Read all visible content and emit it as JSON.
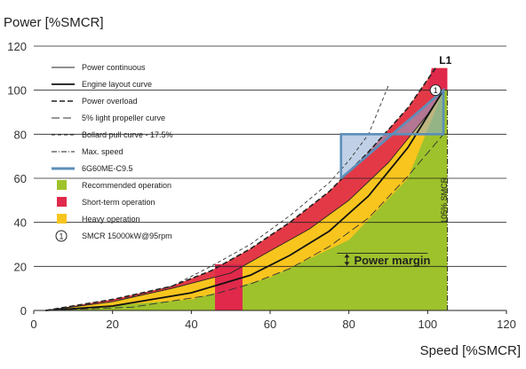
{
  "chart_data": {
    "type": "area",
    "ylabel": "Power [%SMCR]",
    "xlabel": "Speed [%SMCR]",
    "xlim": [
      0,
      120
    ],
    "ylim": [
      0,
      120
    ],
    "xticks": [
      0,
      20,
      40,
      60,
      80,
      100,
      120
    ],
    "yticks": [
      0,
      20,
      40,
      60,
      80,
      100,
      120
    ],
    "grid": "horizontal",
    "legend_position": "top-left",
    "series": [
      {
        "name": "Power continuous",
        "style": "solid-thin",
        "x": [
          3,
          20,
          35,
          50,
          60,
          70,
          80,
          90,
          100,
          104
        ],
        "y": [
          0,
          4,
          10,
          17,
          27,
          37,
          50,
          67,
          89,
          100
        ]
      },
      {
        "name": "Engine layout curve",
        "style": "solid-thick",
        "x": [
          3,
          20,
          40,
          55,
          65,
          75,
          85,
          95,
          104
        ],
        "y": [
          0,
          2,
          8,
          16,
          25,
          36,
          52,
          74,
          100
        ]
      },
      {
        "name": "Power overload",
        "style": "dashed-thick",
        "x": [
          3,
          20,
          35,
          45,
          55,
          65,
          75,
          85,
          95,
          102
        ],
        "y": [
          0,
          5,
          11,
          18,
          28,
          40,
          54,
          72,
          92,
          110
        ]
      },
      {
        "name": "5% light propeller curve",
        "style": "long-dash",
        "x": [
          3,
          25,
          45,
          55,
          65,
          75,
          85,
          95,
          104
        ],
        "y": [
          0,
          1.5,
          7,
          12,
          19,
          29,
          42,
          61,
          80
        ]
      },
      {
        "name": "Bollard pull curve - 17.5%",
        "style": "short-dash",
        "x": [
          3,
          20,
          35,
          45,
          55,
          65,
          75,
          80,
          85,
          90
        ],
        "y": [
          0,
          4,
          11,
          20,
          30,
          43,
          58,
          68,
          80,
          102
        ]
      },
      {
        "name": "Max. speed",
        "style": "dash-dot",
        "x": [
          105,
          105
        ],
        "y": [
          0,
          100
        ]
      },
      {
        "name": "6G60ME-C9.5",
        "style": "steel-blue-box",
        "x": [
          78,
          104,
          104,
          78,
          78
        ],
        "y": [
          60,
          100,
          80,
          80,
          60
        ]
      }
    ],
    "areas": [
      {
        "name": "Recommended operation",
        "color": "#9ec22b",
        "x": [
          3,
          40,
          60,
          80,
          95,
          104,
          105,
          105
        ],
        "y": [
          0,
          5,
          15,
          32,
          60,
          100,
          100,
          0
        ]
      },
      {
        "name": "Short-term operation",
        "color": "#e0294b",
        "x_range": [
          46,
          53
        ],
        "y": [
          0,
          21
        ]
      },
      {
        "name": "Heavy operation",
        "color": "#f8c51e",
        "x": [
          3,
          20,
          35,
          45,
          55,
          65,
          75,
          85,
          95,
          102
        ],
        "y": [
          0,
          5,
          11,
          18,
          28,
          40,
          54,
          72,
          92,
          110
        ]
      }
    ],
    "legend": [
      {
        "label": "Power continuous",
        "marker": "thin-line"
      },
      {
        "label": "Engine layout curve",
        "marker": "thick-line"
      },
      {
        "label": "Power overload",
        "marker": "dashed-thick"
      },
      {
        "label": "5% light propeller curve",
        "marker": "long-dash"
      },
      {
        "label": "Bollard pull curve - 17.5%",
        "marker": "short-dash"
      },
      {
        "label": "Max. speed",
        "marker": "dash-dot"
      },
      {
        "label": "6G60ME-C9.5",
        "marker": "steel-blue-line"
      },
      {
        "label": "Recommended operation",
        "marker": "square",
        "color": "#9ec22b"
      },
      {
        "label": "Short-term operation",
        "marker": "square",
        "color": "#e0294b"
      },
      {
        "label": "Heavy operation",
        "marker": "square",
        "color": "#f8c51e"
      },
      {
        "label": "SMCR 15000kW@95rpm",
        "marker": "circle-number",
        "number": "1"
      }
    ],
    "annotations": [
      {
        "text": "L1",
        "x": 104.5,
        "y": 112
      },
      {
        "text": "1",
        "x": 102,
        "y": 100
      },
      {
        "text": "105% SMCR",
        "x": 106,
        "y": 50
      },
      {
        "text": "Power margin",
        "x": 82,
        "y": 23
      }
    ],
    "power_margin_range": [
      20,
      26
    ],
    "colors": {
      "recommended": "#9ec22b",
      "short_term": "#e0294b",
      "heavy": "#f8c51e",
      "box": "#5b8fb9"
    }
  }
}
